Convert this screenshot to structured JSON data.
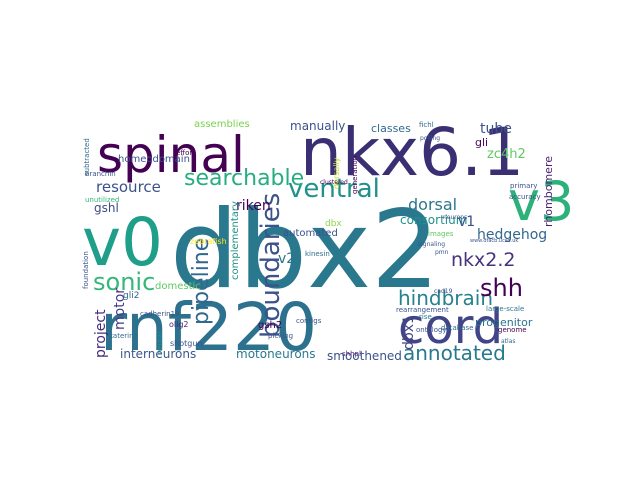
{
  "word_cloud": {
    "colormap": "viridis",
    "background": "#ffffff",
    "words": [
      {
        "text": "dbx2",
        "color": "#2a788e"
      },
      {
        "text": "nkx6.1",
        "color": "#3b2f73"
      },
      {
        "text": "rnf220",
        "color": "#2c728e"
      },
      {
        "text": "cord",
        "color": "#414487"
      },
      {
        "text": "v3",
        "color": "#2cb17a"
      },
      {
        "text": "spinal",
        "color": "#440154"
      },
      {
        "text": "v0",
        "color": "#1f9e89"
      },
      {
        "text": "ventral",
        "color": "#21918c"
      },
      {
        "text": "searchable",
        "color": "#27ad81"
      },
      {
        "text": "boundaries",
        "color": "#3b528b"
      },
      {
        "text": "sonic",
        "color": "#35b779"
      },
      {
        "text": "pipeline",
        "color": "#31688e"
      },
      {
        "text": "hindbrain",
        "color": "#26828e"
      },
      {
        "text": "annotated",
        "color": "#2a788e"
      },
      {
        "text": "shh",
        "color": "#440154"
      },
      {
        "text": "nkx2.2",
        "color": "#46337e"
      },
      {
        "text": "resource",
        "color": "#3b528b"
      },
      {
        "text": "dorsal",
        "color": "#2a788e"
      },
      {
        "text": "consortium",
        "color": "#21918c"
      },
      {
        "text": "tube",
        "color": "#3b528b"
      },
      {
        "text": "zc4h2",
        "color": "#5ec962"
      },
      {
        "text": "hedgehog",
        "color": "#31688e"
      },
      {
        "text": "riken",
        "color": "#440154"
      },
      {
        "text": "v1",
        "color": "#3b528b"
      },
      {
        "text": "v2",
        "color": "#2c728e"
      },
      {
        "text": "gshl",
        "color": "#3e4a89"
      },
      {
        "text": "motor",
        "color": "#443983"
      },
      {
        "text": "project",
        "color": "#472d7b"
      },
      {
        "text": "interneurons",
        "color": "#39568c"
      },
      {
        "text": "motoneurons",
        "color": "#2a788e"
      },
      {
        "text": "smoothened",
        "color": "#3b528b"
      },
      {
        "text": "dbx1",
        "color": "#414487"
      },
      {
        "text": "progenitor",
        "color": "#2c728e"
      },
      {
        "text": "rhombomere",
        "color": "#481f70"
      },
      {
        "text": "manually",
        "color": "#3b528b"
      },
      {
        "text": "classes",
        "color": "#31688e"
      },
      {
        "text": "gli",
        "color": "#440154"
      },
      {
        "text": "homeodomain",
        "color": "#3b528b"
      },
      {
        "text": "assemblies",
        "color": "#7ad151"
      },
      {
        "text": "domestic",
        "color": "#5ec962"
      },
      {
        "text": "complementary",
        "color": "#21918c"
      },
      {
        "text": "automated",
        "color": "#3b528b"
      },
      {
        "text": "gsh2",
        "color": "#440154"
      },
      {
        "text": "gli2",
        "color": "#31688e"
      },
      {
        "text": "dbx",
        "color": "#8fd744"
      },
      {
        "text": "dorsally",
        "color": "#bddf26"
      },
      {
        "text": "zebrafish",
        "color": "#fde725"
      },
      {
        "text": "neural",
        "color": "#21918c"
      },
      {
        "text": "olig2",
        "color": "#481f70"
      },
      {
        "text": "shotgun",
        "color": "#3b528b"
      },
      {
        "text": "kinesin",
        "color": "#2c728e"
      },
      {
        "text": "contigs",
        "color": "#3b528b"
      },
      {
        "text": "ontology",
        "color": "#3b528b"
      },
      {
        "text": "database",
        "color": "#31688e"
      },
      {
        "text": "genome",
        "color": "#440154"
      },
      {
        "text": "images",
        "color": "#5ec962"
      },
      {
        "text": "picking",
        "color": "#3b528b"
      },
      {
        "text": "shhpl",
        "color": "#482475"
      },
      {
        "text": "branchin",
        "color": "#3b528b"
      },
      {
        "text": "effort",
        "color": "#440154"
      },
      {
        "text": "unutilized",
        "color": "#35b779"
      },
      {
        "text": "cadherin19",
        "color": "#3b528b"
      },
      {
        "text": "katerina",
        "color": "#31688e"
      },
      {
        "text": "large-scale",
        "color": "#2a788e"
      },
      {
        "text": "rearrangement",
        "color": "#3b528b"
      },
      {
        "text": "foundation",
        "color": "#3b528b"
      },
      {
        "text": "subtracted",
        "color": "#31688e"
      },
      {
        "text": "accuracy",
        "color": "#3b528b"
      },
      {
        "text": "primary",
        "color": "#3b528b"
      },
      {
        "text": "fichl",
        "color": "#31688e"
      },
      {
        "text": "polling",
        "color": "#3b528b"
      },
      {
        "text": "generation",
        "color": "#440154"
      },
      {
        "text": "neurons",
        "color": "#3b528b"
      },
      {
        "text": "cad19",
        "color": "#3b528b"
      },
      {
        "text": "pmn",
        "color": "#3b528b"
      },
      {
        "text": "rise",
        "color": "#2a788e"
      },
      {
        "text": "clustered",
        "color": "#440154"
      },
      {
        "text": "signaling",
        "color": "#3b528b"
      },
      {
        "text": "atlas",
        "color": "#31688e"
      },
      {
        "text": "www.dfacb.ucsd.uk",
        "color": "#3b528b"
      }
    ]
  }
}
